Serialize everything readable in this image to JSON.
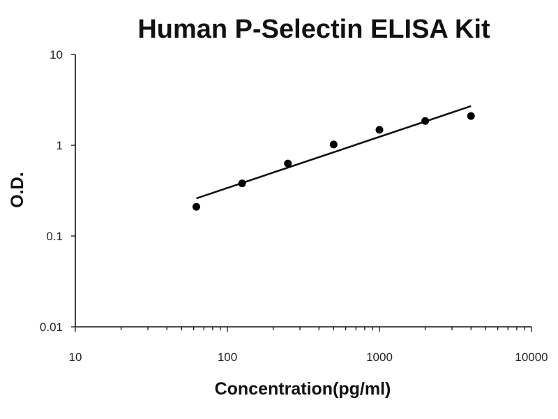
{
  "chart_data": {
    "type": "scatter",
    "title": "Human P-Selectin ELISA Kit",
    "xlabel": "Concentration(pg/ml)",
    "ylabel": "O.D.",
    "x_scale": "log",
    "y_scale": "log",
    "xlim": [
      10,
      10000
    ],
    "ylim": [
      0.01,
      10
    ],
    "x_ticks": [
      10,
      100,
      1000,
      10000
    ],
    "x_tick_labels": [
      "10",
      "100",
      "1000",
      "10000"
    ],
    "y_ticks": [
      0.01,
      0.1,
      1,
      10
    ],
    "y_tick_labels": [
      "0.01",
      "0.1",
      "1",
      "10"
    ],
    "grid": false,
    "legend": "none",
    "series": [
      {
        "x": [
          62.5,
          125,
          250,
          500,
          1000,
          2000,
          4000
        ],
        "y": [
          0.21,
          0.38,
          0.63,
          1.02,
          1.48,
          1.85,
          2.1
        ]
      }
    ],
    "trendline": {
      "type": "power",
      "x": [
        62.5,
        4000
      ],
      "y": [
        0.26,
        2.7
      ]
    },
    "colors": {
      "points": "#000000",
      "line": "#111111",
      "axes": "#111111"
    }
  }
}
